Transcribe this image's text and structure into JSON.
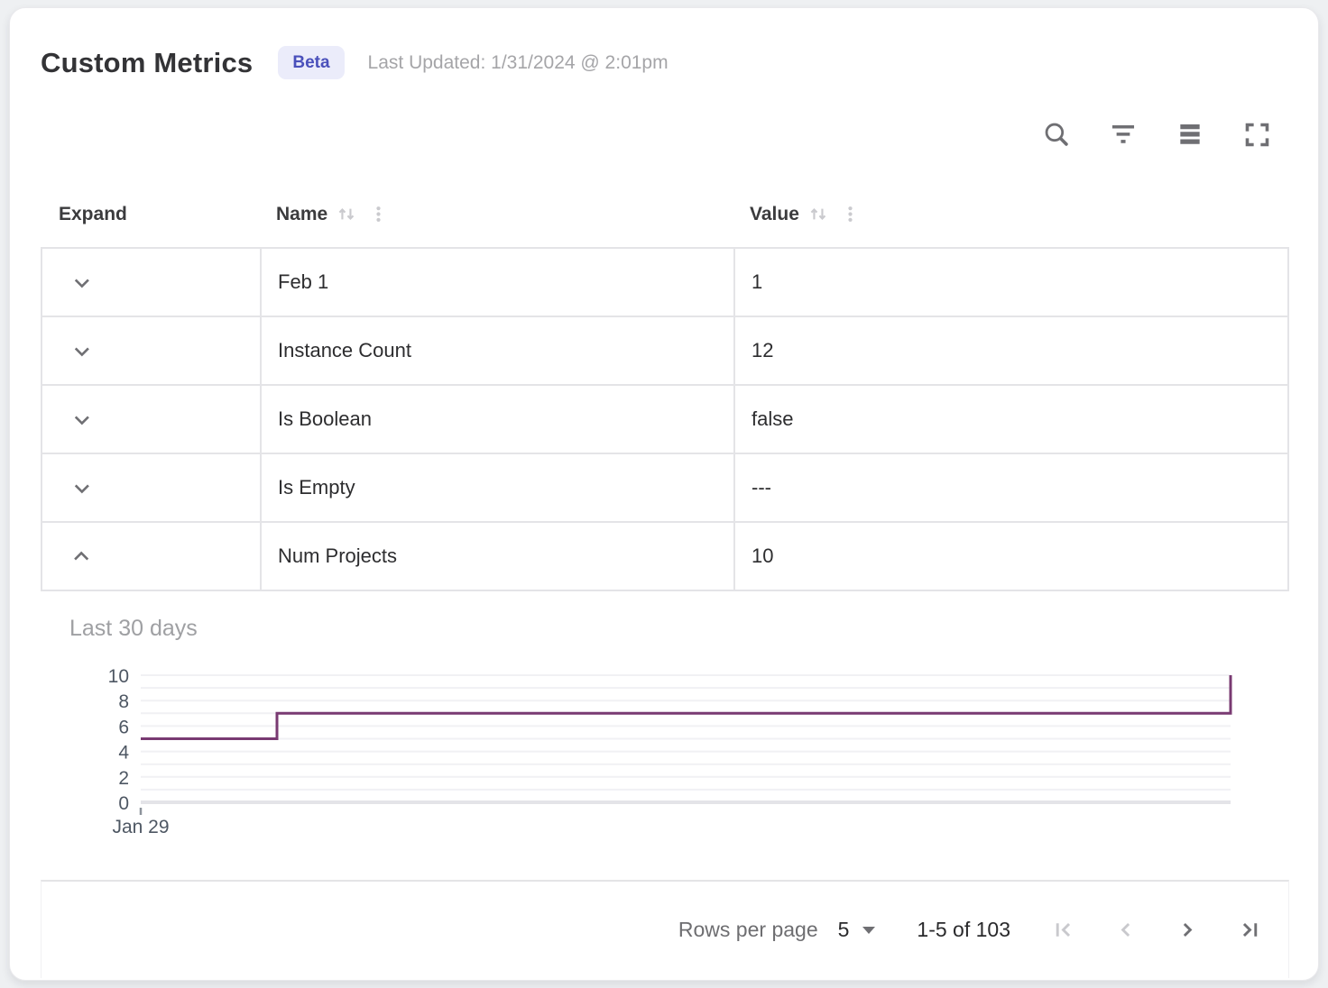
{
  "header": {
    "title": "Custom Metrics",
    "badge": "Beta",
    "last_updated": "Last Updated: 1/31/2024 @ 2:01pm"
  },
  "toolbar": {
    "buttons": [
      {
        "icon": "search"
      },
      {
        "icon": "filter"
      },
      {
        "icon": "density"
      },
      {
        "icon": "fullscreen"
      }
    ]
  },
  "table": {
    "columns": [
      {
        "label": "Expand",
        "sortable": false
      },
      {
        "label": "Name",
        "sortable": true
      },
      {
        "label": "Value",
        "sortable": true
      }
    ],
    "rows": [
      {
        "name": "Feb 1",
        "value": "1",
        "expanded": false
      },
      {
        "name": "Instance Count",
        "value": "12",
        "expanded": false
      },
      {
        "name": "Is Boolean",
        "value": "false",
        "expanded": false
      },
      {
        "name": "Is Empty",
        "value": "---",
        "expanded": false
      },
      {
        "name": "Num Projects",
        "value": "10",
        "expanded": true
      }
    ]
  },
  "detail_panel": {
    "title": "Last 30 days",
    "metric": "Num Projects"
  },
  "chart_data": {
    "type": "line",
    "subtype": "step",
    "title": "Last 30 days",
    "series": [
      {
        "name": "Num Projects",
        "points": [
          {
            "x": 0,
            "y": 5
          },
          {
            "x": 0.125,
            "y": 5
          },
          {
            "x": 0.125,
            "y": 7
          },
          {
            "x": 1,
            "y": 7
          },
          {
            "x": 1,
            "y": 10
          }
        ]
      }
    ],
    "x_unit": "fraction of plot width (time, last 30 days)",
    "x_ticks": [
      {
        "label": "Jan 29",
        "x": 0
      }
    ],
    "y_ticks": [
      0,
      2,
      4,
      6,
      8,
      10
    ],
    "ylim": [
      0,
      10
    ],
    "grid_step": 1,
    "grid": true,
    "legend": false,
    "line_color": "#793a72"
  },
  "footer": {
    "rows_per_page_label": "Rows per page",
    "rows_per_page_value": "5",
    "range_label": "1-5 of 103",
    "nav_buttons": [
      {
        "icon": "first-page",
        "enabled": false
      },
      {
        "icon": "previous-page",
        "enabled": false
      },
      {
        "icon": "next-page",
        "enabled": true
      },
      {
        "icon": "last-page",
        "enabled": true
      }
    ]
  },
  "colors": {
    "badge_bg": "#ebecfa",
    "badge_text": "#4a50bb",
    "chart_line": "#793a72",
    "table_border": "#e4e4e7",
    "icon_gray": "#6f6f73",
    "disabled_icon_gray": "#c9c9cd"
  }
}
